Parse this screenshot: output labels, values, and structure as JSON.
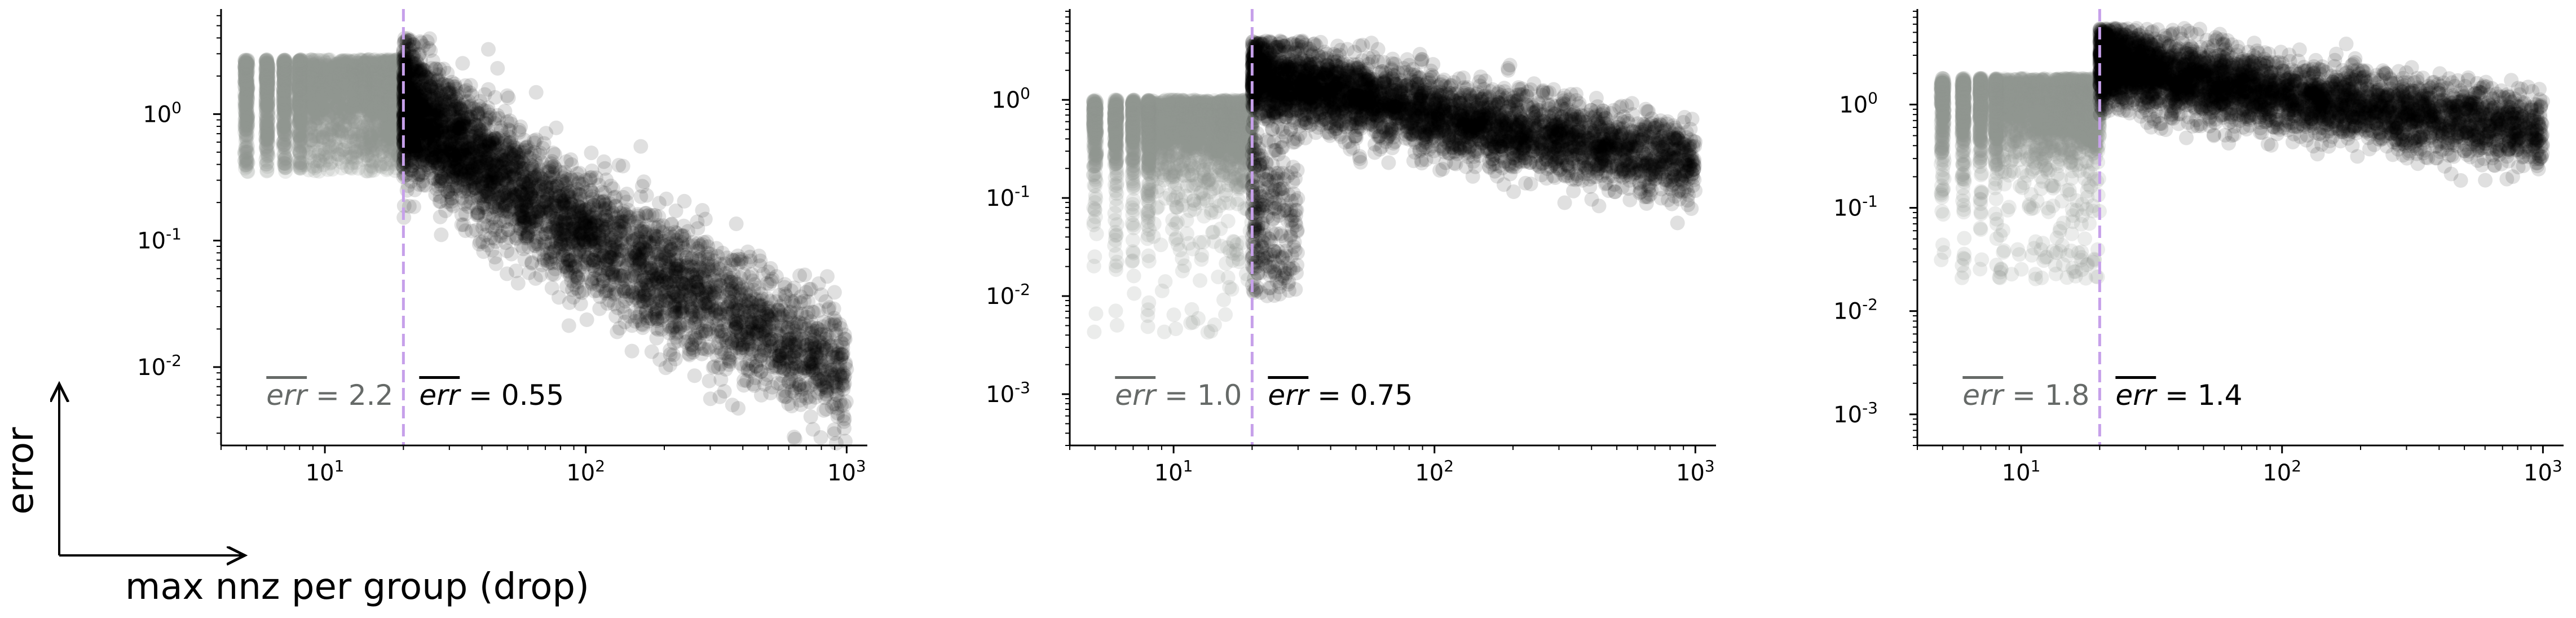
{
  "figure": {
    "ylabel": "error",
    "xlabel": "max nnz per group (drop)"
  },
  "chart_data": [
    {
      "type": "scatter",
      "x_scale": "log",
      "y_scale": "log",
      "xlim": [
        4,
        1200
      ],
      "ylim": [
        0.0024,
        6.5
      ],
      "x_ticks": [
        {
          "value": 10,
          "label": "10^1"
        },
        {
          "value": 100,
          "label": "10^2"
        },
        {
          "value": 1000,
          "label": "10^3"
        }
      ],
      "y_ticks": [
        {
          "value": 0.01,
          "label": "10^-2"
        },
        {
          "value": 0.1,
          "label": "10^-1"
        },
        {
          "value": 1,
          "label": "10^0"
        }
      ],
      "threshold_x": 20,
      "threshold_color": "#c6a0ea",
      "left_color": "#8f9590",
      "right_color": "#000000",
      "annotations": [
        {
          "label": "err",
          "value": "2.2",
          "side": "left"
        },
        {
          "label": "err",
          "value": "0.55",
          "side": "right"
        }
      ],
      "cloud_left": {
        "x_range": [
          5,
          20
        ],
        "y_center": 2.7,
        "y_min": 0.35,
        "y_max": 4.0
      },
      "cloud_right": {
        "x_range": [
          20,
          1000
        ],
        "trend": [
          [
            20,
            1.2
          ],
          [
            60,
            0.22
          ],
          [
            200,
            0.05
          ],
          [
            1000,
            0.009
          ]
        ],
        "spread": 0.55,
        "upper_cap": 4.0
      }
    },
    {
      "type": "scatter",
      "x_scale": "log",
      "y_scale": "log",
      "xlim": [
        4,
        1200
      ],
      "ylim": [
        0.0003,
        8
      ],
      "x_ticks": [
        {
          "value": 10,
          "label": "10^1"
        },
        {
          "value": 100,
          "label": "10^2"
        },
        {
          "value": 1000,
          "label": "10^3"
        }
      ],
      "y_ticks": [
        {
          "value": 0.001,
          "label": "10^-3"
        },
        {
          "value": 0.01,
          "label": "10^-2"
        },
        {
          "value": 0.1,
          "label": "10^-1"
        },
        {
          "value": 1,
          "label": "10^0"
        }
      ],
      "threshold_x": 20,
      "threshold_color": "#c6a0ea",
      "left_color": "#8f9590",
      "right_color": "#000000",
      "annotations": [
        {
          "label": "err",
          "value": "1.0",
          "side": "left"
        },
        {
          "label": "err",
          "value": "0.75",
          "side": "right"
        }
      ],
      "cloud_left": {
        "x_range": [
          5,
          20
        ],
        "y_center": 1.0,
        "y_min": 0.004,
        "y_max": 3.0
      },
      "cloud_right": {
        "x_range": [
          20,
          1000
        ],
        "trend": [
          [
            20,
            1.8
          ],
          [
            100,
            0.7
          ],
          [
            1000,
            0.22
          ]
        ],
        "spread": 0.45,
        "upper_cap": 4.0,
        "dip": {
          "x_range": [
            20,
            30
          ],
          "y_min": 0.01
        }
      }
    },
    {
      "type": "scatter",
      "x_scale": "log",
      "y_scale": "log",
      "xlim": [
        4,
        1200
      ],
      "ylim": [
        0.0005,
        8
      ],
      "x_ticks": [
        {
          "value": 10,
          "label": "10^1"
        },
        {
          "value": 100,
          "label": "10^2"
        },
        {
          "value": 1000,
          "label": "10^3"
        }
      ],
      "y_ticks": [
        {
          "value": 0.001,
          "label": "10^-3"
        },
        {
          "value": 0.01,
          "label": "10^-2"
        },
        {
          "value": 0.1,
          "label": "10^-1"
        },
        {
          "value": 1,
          "label": "10^0"
        }
      ],
      "threshold_x": 20,
      "threshold_color": "#c6a0ea",
      "left_color": "#8f9590",
      "right_color": "#000000",
      "annotations": [
        {
          "label": "err",
          "value": "1.8",
          "side": "left"
        },
        {
          "label": "err",
          "value": "1.4",
          "side": "right"
        }
      ],
      "cloud_left": {
        "x_range": [
          5,
          20
        ],
        "y_center": 1.8,
        "y_min": 0.02,
        "y_max": 4.0
      },
      "cloud_right": {
        "x_range": [
          20,
          1000
        ],
        "trend": [
          [
            20,
            2.6
          ],
          [
            100,
            1.2
          ],
          [
            1000,
            0.55
          ]
        ],
        "spread": 0.4,
        "upper_cap": 5.5
      }
    }
  ]
}
